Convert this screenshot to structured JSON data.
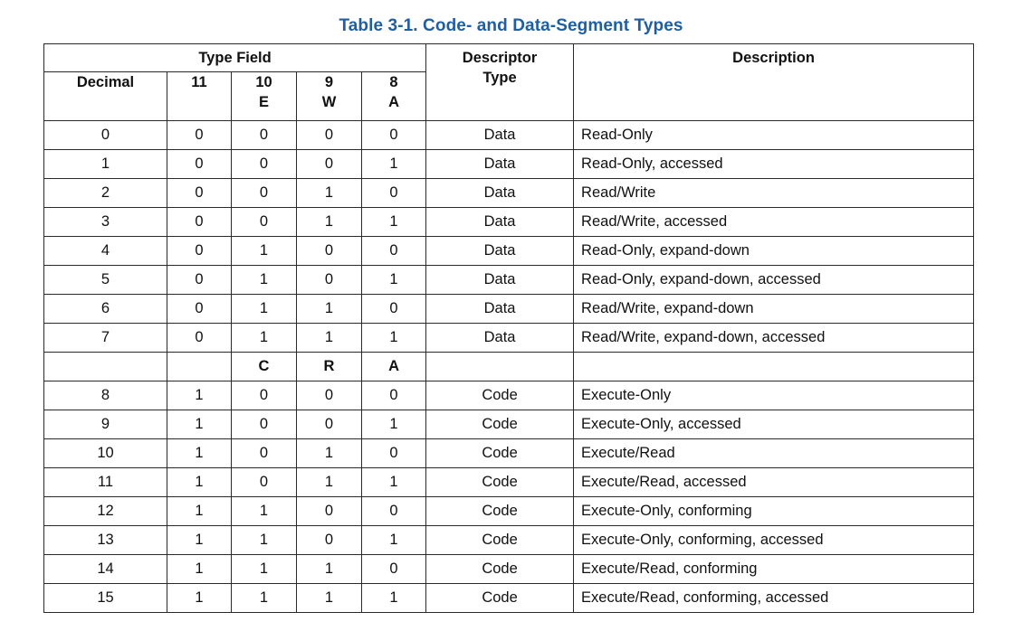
{
  "caption": "Table 3-1.  Code- and Data-Segment Types",
  "header": {
    "type_field": "Type Field",
    "descriptor_type": [
      "Descriptor",
      "Type"
    ],
    "description": "Description",
    "decimal": "Decimal",
    "bit11": "11",
    "bit10": [
      "10",
      "E"
    ],
    "bit9": [
      "9",
      "W"
    ],
    "bit8": [
      "8",
      "A"
    ]
  },
  "data_rows": [
    {
      "dec": "0",
      "b11": "0",
      "b10": "0",
      "b9": "0",
      "b8": "0",
      "type": "Data",
      "desc": "Read-Only"
    },
    {
      "dec": "1",
      "b11": "0",
      "b10": "0",
      "b9": "0",
      "b8": "1",
      "type": "Data",
      "desc": "Read-Only, accessed"
    },
    {
      "dec": "2",
      "b11": "0",
      "b10": "0",
      "b9": "1",
      "b8": "0",
      "type": "Data",
      "desc": "Read/Write"
    },
    {
      "dec": "3",
      "b11": "0",
      "b10": "0",
      "b9": "1",
      "b8": "1",
      "type": "Data",
      "desc": "Read/Write, accessed"
    },
    {
      "dec": "4",
      "b11": "0",
      "b10": "1",
      "b9": "0",
      "b8": "0",
      "type": "Data",
      "desc": "Read-Only, expand-down"
    },
    {
      "dec": "5",
      "b11": "0",
      "b10": "1",
      "b9": "0",
      "b8": "1",
      "type": "Data",
      "desc": "Read-Only, expand-down, accessed"
    },
    {
      "dec": "6",
      "b11": "0",
      "b10": "1",
      "b9": "1",
      "b8": "0",
      "type": "Data",
      "desc": "Read/Write, expand-down"
    },
    {
      "dec": "7",
      "b11": "0",
      "b10": "1",
      "b9": "1",
      "b8": "1",
      "type": "Data",
      "desc": "Read/Write, expand-down, accessed"
    }
  ],
  "code_subheader": {
    "b10": "C",
    "b9": "R",
    "b8": "A"
  },
  "code_rows": [
    {
      "dec": "8",
      "b11": "1",
      "b10": "0",
      "b9": "0",
      "b8": "0",
      "type": "Code",
      "desc": "Execute-Only"
    },
    {
      "dec": "9",
      "b11": "1",
      "b10": "0",
      "b9": "0",
      "b8": "1",
      "type": "Code",
      "desc": "Execute-Only, accessed"
    },
    {
      "dec": "10",
      "b11": "1",
      "b10": "0",
      "b9": "1",
      "b8": "0",
      "type": "Code",
      "desc": "Execute/Read"
    },
    {
      "dec": "11",
      "b11": "1",
      "b10": "0",
      "b9": "1",
      "b8": "1",
      "type": "Code",
      "desc": "Execute/Read, accessed"
    },
    {
      "dec": "12",
      "b11": "1",
      "b10": "1",
      "b9": "0",
      "b8": "0",
      "type": "Code",
      "desc": "Execute-Only, conforming"
    },
    {
      "dec": "13",
      "b11": "1",
      "b10": "1",
      "b9": "0",
      "b8": "1",
      "type": "Code",
      "desc": "Execute-Only, conforming, accessed"
    },
    {
      "dec": "14",
      "b11": "1",
      "b10": "1",
      "b9": "1",
      "b8": "0",
      "type": "Code",
      "desc": "Execute/Read, conforming"
    },
    {
      "dec": "15",
      "b11": "1",
      "b10": "1",
      "b9": "1",
      "b8": "1",
      "type": "Code",
      "desc": "Execute/Read, conforming, accessed"
    }
  ]
}
